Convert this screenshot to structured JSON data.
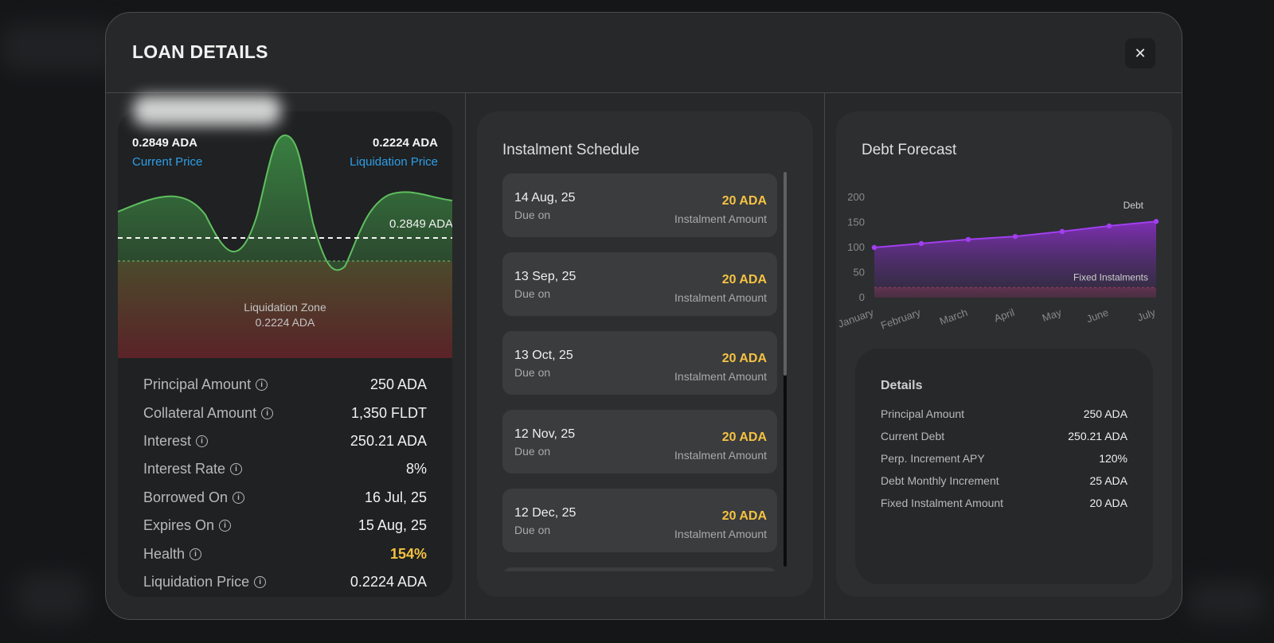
{
  "modal": {
    "title": "LOAN DETAILS",
    "close_symbol": "✕"
  },
  "price_panel": {
    "current_price_value": "0.2849 ADA",
    "current_price_label": "Current Price",
    "liquidation_price_value": "0.2224 ADA",
    "liquidation_price_label": "Liquidation Price",
    "current_line_label": "0.2849 ADA",
    "zone_label": "Liquidation Zone",
    "zone_value": "0.2224 ADA"
  },
  "stats": [
    {
      "label": "Principal Amount",
      "value": "250 ADA"
    },
    {
      "label": "Collateral Amount",
      "value": "1,350 FLDT"
    },
    {
      "label": "Interest",
      "value": "250.21 ADA"
    },
    {
      "label": "Interest Rate",
      "value": "8%"
    },
    {
      "label": "Borrowed On",
      "value": "16 Jul, 25"
    },
    {
      "label": "Expires On",
      "value": "15 Aug, 25"
    },
    {
      "label": "Health",
      "value": "154%"
    },
    {
      "label": "Liquidation Price",
      "value": "0.2224 ADA"
    }
  ],
  "schedule": {
    "title": "Instalment Schedule",
    "items": [
      {
        "date": "14 Aug, 25",
        "due_label": "Due on",
        "amount": "20 ADA",
        "amount_label": "Instalment Amount"
      },
      {
        "date": "13 Sep, 25",
        "due_label": "Due on",
        "amount": "20 ADA",
        "amount_label": "Instalment Amount"
      },
      {
        "date": "13 Oct, 25",
        "due_label": "Due on",
        "amount": "20 ADA",
        "amount_label": "Instalment Amount"
      },
      {
        "date": "12 Nov, 25",
        "due_label": "Due on",
        "amount": "20 ADA",
        "amount_label": "Instalment Amount"
      },
      {
        "date": "12 Dec, 25",
        "due_label": "Due on",
        "amount": "20 ADA",
        "amount_label": "Instalment Amount"
      }
    ]
  },
  "forecast": {
    "title": "Debt Forecast",
    "details_title": "Details",
    "details": [
      {
        "label": "Principal Amount",
        "value": "250 ADA"
      },
      {
        "label": "Current Debt",
        "value": "250.21 ADA"
      },
      {
        "label": "Perp. Increment APY",
        "value": "120%"
      },
      {
        "label": "Debt Monthly Increment",
        "value": "25 ADA"
      },
      {
        "label": "Fixed Instalment Amount",
        "value": "20 ADA"
      }
    ]
  },
  "chart_data": {
    "type": "area",
    "title": "Debt Forecast",
    "categories": [
      "January",
      "February",
      "March",
      "April",
      "May",
      "June",
      "July"
    ],
    "series": [
      {
        "name": "Debt",
        "values": [
          100,
          108,
          116,
          122,
          132,
          143,
          152
        ]
      },
      {
        "name": "Fixed Instalments",
        "values": [
          20,
          20,
          20,
          20,
          20,
          20,
          20
        ]
      }
    ],
    "yticks": [
      0,
      50,
      100,
      150,
      200
    ],
    "ylim": [
      0,
      200
    ],
    "colors": {
      "debt": "#9b2fe0",
      "fixed": "#c0404e"
    }
  },
  "colors": {
    "accent_blue": "#2f9ee8",
    "accent_yellow": "#f5c242",
    "price_green": "#4caf50"
  }
}
